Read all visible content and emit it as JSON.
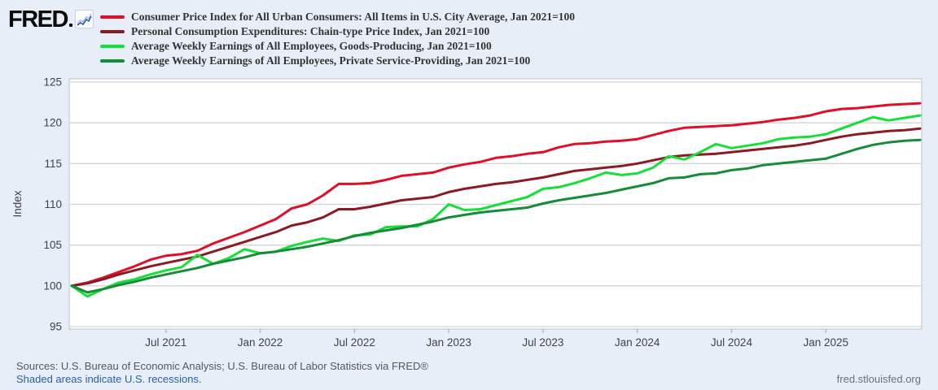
{
  "logo": {
    "text": "FRED"
  },
  "legend": [
    {
      "label": "Consumer Price Index for All Urban Consumers: All Items in U.S. City Average, Jan 2021=100",
      "color": "#e20e29"
    },
    {
      "label": "Personal Consumption Expenditures: Chain-type Price Index, Jan 2021=100",
      "color": "#8b1a25"
    },
    {
      "label": "Average Weekly Earnings of All Employees, Goods-Producing, Jan 2021=100",
      "color": "#15e038"
    },
    {
      "label": "Average Weekly Earnings of All Employees, Private Service-Providing, Jan 2021=100",
      "color": "#178c38"
    }
  ],
  "chart_data": {
    "type": "line",
    "ylabel": "Index",
    "ylim": [
      95,
      125
    ],
    "yticks": [
      95,
      100,
      105,
      110,
      115,
      120,
      125
    ],
    "grid": "horizontal",
    "legend_position": "top-left",
    "xticks": [
      {
        "label": "Jul 2021",
        "month_index": 6
      },
      {
        "label": "Jan 2022",
        "month_index": 12
      },
      {
        "label": "Jul 2022",
        "month_index": 18
      },
      {
        "label": "Jan 2023",
        "month_index": 24
      },
      {
        "label": "Jul 2023",
        "month_index": 30
      },
      {
        "label": "Jan 2024",
        "month_index": 36
      },
      {
        "label": "Jul 2024",
        "month_index": 42
      },
      {
        "label": "Jan 2025",
        "month_index": 48
      }
    ],
    "x": [
      "2021-01",
      "2021-02",
      "2021-03",
      "2021-04",
      "2021-05",
      "2021-06",
      "2021-07",
      "2021-08",
      "2021-09",
      "2021-10",
      "2021-11",
      "2021-12",
      "2022-01",
      "2022-02",
      "2022-03",
      "2022-04",
      "2022-05",
      "2022-06",
      "2022-07",
      "2022-08",
      "2022-09",
      "2022-10",
      "2022-11",
      "2022-12",
      "2023-01",
      "2023-02",
      "2023-03",
      "2023-04",
      "2023-05",
      "2023-06",
      "2023-07",
      "2023-08",
      "2023-09",
      "2023-10",
      "2023-11",
      "2023-12",
      "2024-01",
      "2024-02",
      "2024-03",
      "2024-04",
      "2024-05",
      "2024-06",
      "2024-07",
      "2024-08",
      "2024-09",
      "2024-10",
      "2024-11",
      "2024-12",
      "2025-01",
      "2025-02",
      "2025-03",
      "2025-04",
      "2025-05",
      "2025-06",
      "2025-07"
    ],
    "series": [
      {
        "name": "Consumer Price Index for All Urban Consumers: All Items in U.S. City Average, Jan 2021=100",
        "color": "#e20e29",
        "values": [
          100.0,
          100.4,
          101.0,
          101.7,
          102.4,
          103.2,
          103.7,
          103.9,
          104.3,
          105.2,
          105.9,
          106.6,
          107.4,
          108.2,
          109.5,
          110.0,
          111.1,
          112.5,
          112.5,
          112.6,
          113.0,
          113.5,
          113.7,
          113.9,
          114.5,
          114.9,
          115.2,
          115.7,
          115.9,
          116.2,
          116.4,
          117.0,
          117.4,
          117.5,
          117.7,
          117.8,
          118.0,
          118.5,
          119.0,
          119.4,
          119.5,
          119.6,
          119.7,
          119.9,
          120.1,
          120.4,
          120.6,
          120.9,
          121.4,
          121.7,
          121.8,
          122.0,
          122.2,
          122.3,
          122.4
        ]
      },
      {
        "name": "Personal Consumption Expenditures: Chain-type Price Index, Jan 2021=100",
        "color": "#8b1a25",
        "values": [
          100.0,
          100.3,
          100.8,
          101.4,
          101.9,
          102.4,
          102.8,
          103.2,
          103.6,
          104.2,
          104.8,
          105.4,
          106.0,
          106.6,
          107.4,
          107.8,
          108.4,
          109.4,
          109.4,
          109.7,
          110.1,
          110.5,
          110.7,
          110.9,
          111.5,
          111.9,
          112.2,
          112.5,
          112.7,
          113.0,
          113.3,
          113.7,
          114.1,
          114.3,
          114.5,
          114.7,
          115.0,
          115.4,
          115.8,
          116.0,
          116.1,
          116.2,
          116.4,
          116.6,
          116.8,
          117.0,
          117.2,
          117.5,
          117.9,
          118.3,
          118.6,
          118.8,
          119.0,
          119.1,
          119.3
        ]
      },
      {
        "name": "Average Weekly Earnings of All Employees, Goods-Producing, Jan 2021=100",
        "color": "#15e038",
        "values": [
          100.0,
          98.7,
          99.6,
          100.4,
          100.8,
          101.4,
          101.9,
          102.3,
          103.8,
          102.7,
          103.4,
          104.5,
          104.0,
          104.2,
          104.9,
          105.4,
          105.8,
          105.5,
          106.2,
          106.3,
          107.2,
          107.3,
          107.3,
          108.2,
          110.0,
          109.3,
          109.4,
          109.9,
          110.4,
          110.9,
          111.9,
          112.1,
          112.6,
          113.2,
          113.9,
          113.6,
          113.8,
          114.5,
          115.9,
          115.5,
          116.4,
          117.4,
          116.9,
          117.2,
          117.5,
          118.0,
          118.2,
          118.3,
          118.6,
          119.3,
          120.0,
          120.7,
          120.3,
          120.6,
          120.9
        ]
      },
      {
        "name": "Average Weekly Earnings of All Employees, Private Service-Providing, Jan 2021=100",
        "color": "#178c38",
        "values": [
          100.0,
          99.2,
          99.6,
          100.1,
          100.5,
          101.0,
          101.4,
          101.8,
          102.2,
          102.7,
          103.1,
          103.5,
          104.0,
          104.2,
          104.5,
          104.8,
          105.2,
          105.6,
          106.1,
          106.5,
          106.8,
          107.1,
          107.5,
          107.9,
          108.4,
          108.7,
          109.0,
          109.2,
          109.4,
          109.6,
          110.1,
          110.5,
          110.8,
          111.1,
          111.4,
          111.8,
          112.2,
          112.6,
          113.2,
          113.3,
          113.7,
          113.8,
          114.2,
          114.4,
          114.8,
          115.0,
          115.2,
          115.4,
          115.6,
          116.2,
          116.8,
          117.3,
          117.6,
          117.8,
          117.9
        ]
      }
    ]
  },
  "footer": {
    "sources": "Sources: U.S. Bureau of Economic Analysis; U.S. Bureau of Labor Statistics via FRED®",
    "recessions_note": "Shaded areas indicate U.S. recessions.",
    "site": "fred.stlouisfed.org"
  }
}
